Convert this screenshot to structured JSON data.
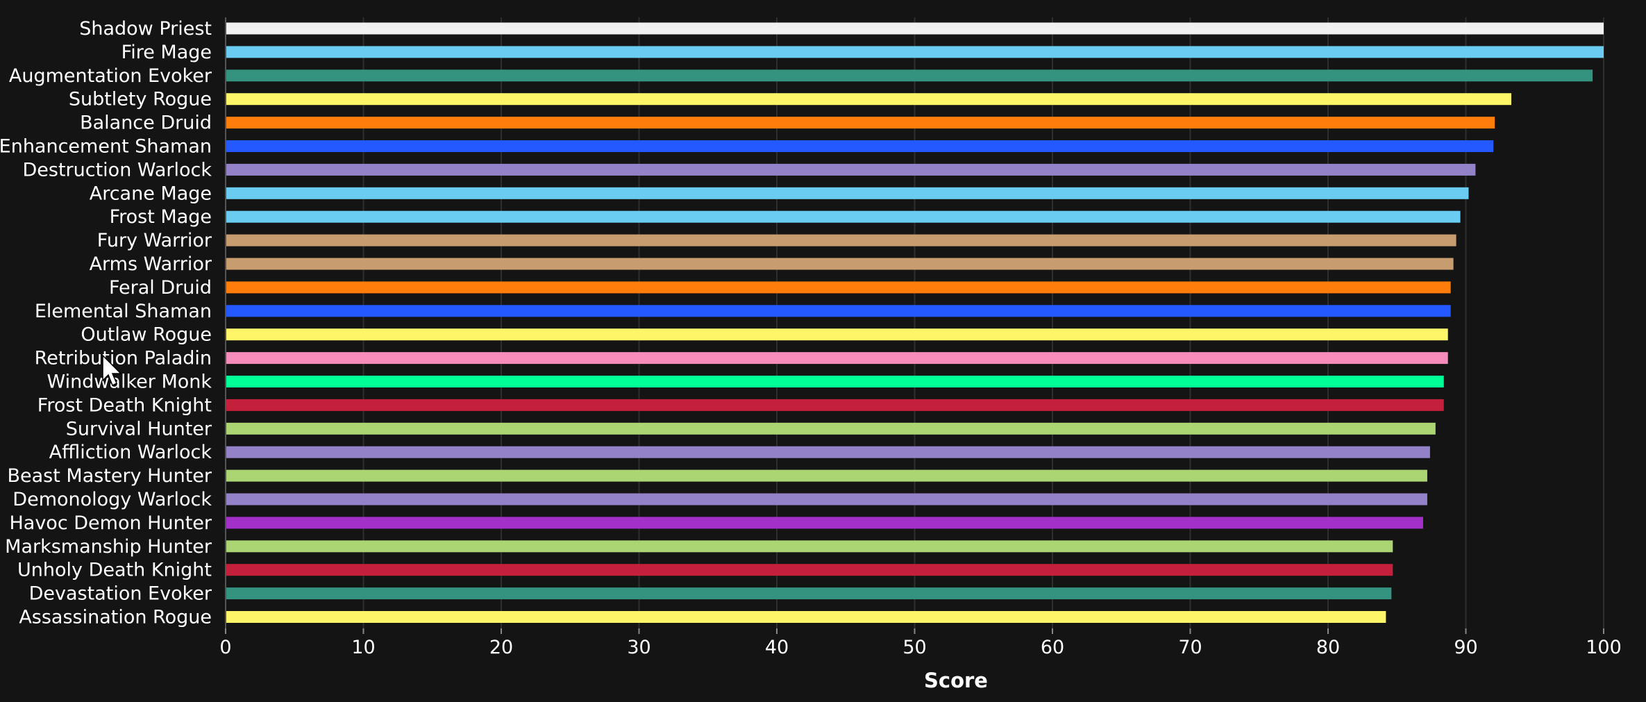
{
  "chart_data": {
    "type": "bar",
    "orientation": "horizontal",
    "xlabel": "Score",
    "xlim": [
      0,
      100
    ],
    "xticks": [
      "0",
      "10",
      "20",
      "30",
      "40",
      "50",
      "60",
      "70",
      "80",
      "90",
      "100"
    ],
    "grid": true,
    "categories": [
      "Shadow Priest",
      "Fire Mage",
      "Augmentation Evoker",
      "Subtlety Rogue",
      "Balance Druid",
      "Enhancement Shaman",
      "Destruction Warlock",
      "Arcane Mage",
      "Frost Mage",
      "Fury Warrior",
      "Arms Warrior",
      "Feral Druid",
      "Elemental Shaman",
      "Outlaw Rogue",
      "Retribution Paladin",
      "Windwalker Monk",
      "Frost Death Knight",
      "Survival Hunter",
      "Affliction Warlock",
      "Beast Mastery Hunter",
      "Demonology Warlock",
      "Havoc Demon Hunter",
      "Marksmanship Hunter",
      "Unholy Death Knight",
      "Devastation Evoker",
      "Assassination Rogue"
    ],
    "values": [
      100,
      100,
      99.2,
      93.3,
      92.1,
      92.0,
      90.7,
      90.2,
      89.6,
      89.3,
      89.1,
      88.9,
      88.9,
      88.7,
      88.7,
      88.4,
      88.4,
      87.8,
      87.4,
      87.2,
      87.2,
      86.9,
      84.7,
      84.7,
      84.6,
      84.2
    ],
    "colors": [
      "#f0f0f0",
      "#69ccf0",
      "#33937f",
      "#fff569",
      "#ff7d0a",
      "#2459ff",
      "#9482c9",
      "#69ccf0",
      "#69ccf0",
      "#c79c6e",
      "#c79c6e",
      "#ff7d0a",
      "#2459ff",
      "#fff569",
      "#f58cba",
      "#00ff96",
      "#c41f3b",
      "#abd473",
      "#9482c9",
      "#abd473",
      "#9482c9",
      "#a330c9",
      "#abd473",
      "#c41f3b",
      "#33937f",
      "#fff569"
    ],
    "background_color": "#141414",
    "text_color": "#ffffff"
  }
}
